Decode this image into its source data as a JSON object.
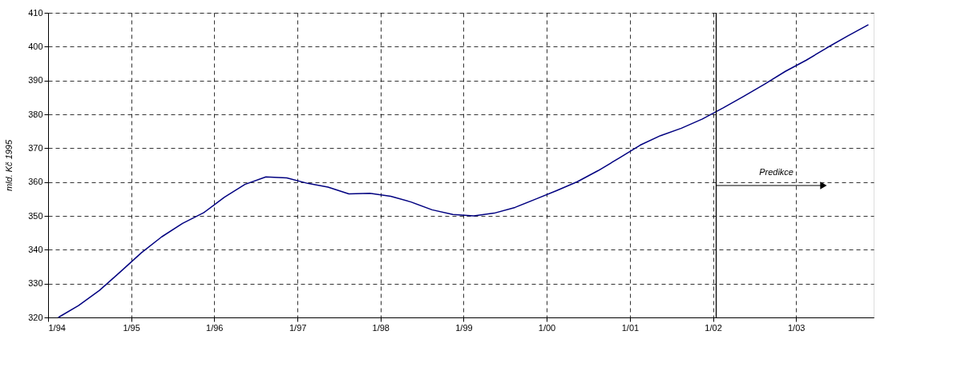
{
  "chart_data": {
    "type": "line",
    "ylabel": "mld. Kč 1995",
    "x": [
      "1994-02-15",
      "1994-05-15",
      "1994-08-15",
      "1994-11-15",
      "1995-02-15",
      "1995-05-15",
      "1995-08-15",
      "1995-11-15",
      "1996-02-15",
      "1996-05-15",
      "1996-08-15",
      "1996-11-15",
      "1997-02-15",
      "1997-05-15",
      "1997-08-15",
      "1997-11-15",
      "1998-02-15",
      "1998-05-15",
      "1998-08-15",
      "1998-11-15",
      "1999-02-15",
      "1999-05-15",
      "1999-08-15",
      "1999-11-15",
      "2000-02-15",
      "2000-05-15",
      "2000-08-15",
      "2000-11-15",
      "2001-02-15",
      "2001-05-15",
      "2001-08-15",
      "2001-11-15",
      "2002-02-15",
      "2002-05-15",
      "2002-08-15",
      "2002-11-15",
      "2003-02-15",
      "2003-05-15",
      "2003-08-15",
      "2003-11-15"
    ],
    "series": [
      {
        "color": "#000080",
        "values": [
          320.0,
          323.5,
          328.0,
          333.5,
          339.1,
          343.8,
          347.8,
          350.9,
          355.5,
          359.3,
          361.5,
          361.2,
          359.6,
          358.5,
          356.5,
          356.7,
          355.8,
          354.1,
          351.8,
          350.4,
          350.0,
          350.8,
          352.5,
          355.0,
          357.5,
          360.1,
          363.4,
          367.1,
          370.9,
          373.7,
          375.9,
          378.6,
          381.9,
          385.3,
          388.9,
          392.7,
          396.0,
          399.6,
          403.1,
          406.5
        ]
      }
    ],
    "xlim": [
      "1994-01-01",
      "2003-12-08"
    ],
    "ylim": [
      320,
      410
    ],
    "xticks": [
      {
        "value": "1994-01-01",
        "label": "1/94"
      },
      {
        "value": "1995-01-01",
        "label": "1/95"
      },
      {
        "value": "1996-01-01",
        "label": "1/96"
      },
      {
        "value": "1997-01-01",
        "label": "1/97"
      },
      {
        "value": "1998-01-01",
        "label": "1/98"
      },
      {
        "value": "1999-01-01",
        "label": "1/99"
      },
      {
        "value": "2000-01-01",
        "label": "1/00"
      },
      {
        "value": "2001-01-01",
        "label": "1/01"
      },
      {
        "value": "2002-01-01",
        "label": "1/02"
      },
      {
        "value": "2003-01-01",
        "label": "1/03"
      }
    ],
    "yticks": [
      320,
      330,
      340,
      350,
      360,
      370,
      380,
      390,
      400,
      410
    ],
    "grid": true,
    "line_style": "solid",
    "marker": "none",
    "ref_lines": [
      {
        "axis": "x",
        "value": "2002-01-15",
        "color": "#000000",
        "line_style": "solid"
      }
    ],
    "annotations": [
      "Predikce"
    ]
  }
}
